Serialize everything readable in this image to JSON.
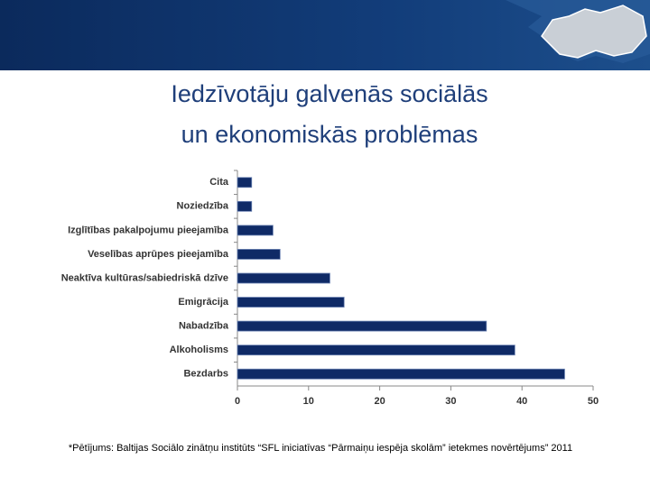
{
  "chart_data": {
    "type": "barh",
    "title": [
      "Iedzīvotāju galvenās sociālās",
      "un ekonomiskās problēmas"
    ],
    "categories": [
      "Cita",
      "Noziedzība",
      "Izglītības pakalpojumu pieejamība",
      "Veselības aprūpes pieejamība",
      "Neaktīva kultūras/sabiedriskā dzīve",
      "Emigrācija",
      "Nabadzība",
      "Alkoholisms",
      "Bezdarbs"
    ],
    "values": [
      2,
      2,
      5,
      6,
      13,
      15,
      35,
      39,
      46
    ],
    "color": "#0f2a66",
    "xlim": [
      0,
      50
    ],
    "xticks": [
      0,
      10,
      20,
      30,
      40,
      50
    ],
    "grid": false,
    "note": "*Pētījums: Baltijas Sociālo zinātņu institūts “SFL iniciatīvas “Pārmaiņu iespēja skolām” ietekmes novērtējums” 2011"
  }
}
